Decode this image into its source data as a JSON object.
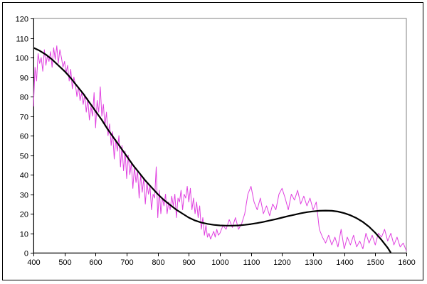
{
  "chart_data": {
    "type": "line",
    "title": "",
    "xlabel": "",
    "ylabel": "",
    "xlim": [
      400,
      1600
    ],
    "ylim": [
      0,
      120
    ],
    "x_ticks": [
      400,
      500,
      600,
      700,
      800,
      900,
      1000,
      1100,
      1200,
      1300,
      1400,
      1500,
      1600
    ],
    "y_ticks": [
      0,
      10,
      20,
      30,
      40,
      50,
      60,
      70,
      80,
      90,
      100,
      110,
      120
    ],
    "grid": {
      "horizontal": true,
      "vertical": false
    },
    "legend": "none",
    "colors": {
      "noisy_series": "#e040e0",
      "trend_series": "#000000",
      "grid": "#000000",
      "plot_background": "#ffffff"
    },
    "series": [
      {
        "style": "noisy",
        "x": [
          400,
          405,
          410,
          415,
          420,
          425,
          430,
          435,
          440,
          445,
          450,
          455,
          460,
          465,
          470,
          475,
          480,
          485,
          490,
          495,
          500,
          505,
          510,
          515,
          520,
          525,
          530,
          535,
          540,
          545,
          550,
          555,
          560,
          565,
          570,
          575,
          580,
          585,
          590,
          595,
          600,
          605,
          610,
          615,
          620,
          625,
          630,
          635,
          640,
          645,
          650,
          655,
          660,
          665,
          670,
          675,
          680,
          685,
          690,
          695,
          700,
          705,
          710,
          715,
          720,
          725,
          730,
          735,
          740,
          745,
          750,
          755,
          760,
          765,
          770,
          775,
          780,
          785,
          790,
          795,
          800,
          805,
          810,
          815,
          820,
          825,
          830,
          835,
          840,
          845,
          850,
          855,
          860,
          865,
          870,
          875,
          880,
          885,
          890,
          895,
          900,
          905,
          910,
          915,
          920,
          925,
          930,
          935,
          940,
          945,
          950,
          955,
          960,
          965,
          970,
          975,
          980,
          985,
          990,
          995,
          1000,
          1010,
          1020,
          1030,
          1040,
          1050,
          1060,
          1070,
          1080,
          1090,
          1100,
          1110,
          1120,
          1130,
          1140,
          1150,
          1160,
          1170,
          1180,
          1190,
          1200,
          1210,
          1220,
          1230,
          1240,
          1250,
          1260,
          1270,
          1280,
          1290,
          1300,
          1310,
          1320,
          1330,
          1340,
          1350,
          1360,
          1370,
          1380,
          1390,
          1400,
          1410,
          1420,
          1430,
          1440,
          1450,
          1460,
          1470,
          1480,
          1490,
          1500,
          1510,
          1520,
          1530,
          1540,
          1550,
          1560,
          1570,
          1580,
          1590,
          1600
        ],
        "y": [
          75,
          95,
          88,
          102,
          97,
          100,
          93,
          104,
          96,
          101,
          98,
          103,
          95,
          105,
          99,
          106,
          97,
          104,
          100,
          95,
          98,
          92,
          96,
          88,
          94,
          84,
          90,
          86,
          80,
          85,
          78,
          82,
          76,
          81,
          72,
          79,
          68,
          75,
          70,
          82,
          64,
          78,
          72,
          85,
          70,
          76,
          65,
          72,
          60,
          66,
          55,
          62,
          48,
          58,
          52,
          60,
          44,
          55,
          42,
          52,
          38,
          50,
          40,
          46,
          33,
          44,
          36,
          42,
          28,
          40,
          31,
          38,
          25,
          36,
          30,
          34,
          22,
          30,
          28,
          44,
          18,
          32,
          20,
          28,
          24,
          30,
          20,
          26,
          22,
          29,
          24,
          30,
          18,
          28,
          26,
          32,
          22,
          30,
          28,
          34,
          26,
          33,
          22,
          28,
          20,
          26,
          18,
          24,
          12,
          18,
          9,
          14,
          8,
          10,
          7,
          9,
          11,
          8,
          12,
          9,
          10,
          14,
          12,
          17,
          13,
          18,
          12,
          15,
          20,
          30,
          34,
          26,
          22,
          28,
          20,
          24,
          19,
          25,
          22,
          30,
          33,
          28,
          22,
          30,
          27,
          32,
          25,
          29,
          24,
          28,
          22,
          26,
          12,
          8,
          5,
          9,
          4,
          8,
          3,
          12,
          2,
          8,
          4,
          9,
          3,
          6,
          2,
          10,
          5,
          9,
          4,
          10,
          8,
          12,
          6,
          10,
          4,
          8,
          3,
          5,
          1
        ]
      },
      {
        "style": "trend",
        "x": [
          400,
          420,
          440,
          460,
          480,
          500,
          520,
          540,
          560,
          580,
          600,
          620,
          640,
          660,
          680,
          700,
          720,
          740,
          760,
          780,
          800,
          820,
          840,
          860,
          880,
          900,
          920,
          940,
          960,
          980,
          1000,
          1020,
          1040,
          1060,
          1080,
          1100,
          1120,
          1140,
          1160,
          1180,
          1200,
          1220,
          1240,
          1260,
          1280,
          1300,
          1320,
          1340,
          1360,
          1380,
          1400,
          1420,
          1440,
          1460,
          1480,
          1500,
          1520,
          1540,
          1550
        ],
        "y": [
          105,
          103.5,
          101.5,
          99,
          96,
          93,
          89.5,
          85.5,
          81.5,
          77,
          72.5,
          68,
          63,
          58.5,
          54,
          49.5,
          45,
          41,
          37,
          33.5,
          30,
          27,
          24.5,
          22,
          20,
          18,
          16.5,
          15.5,
          14.8,
          14.3,
          14,
          13.9,
          13.9,
          14,
          14.3,
          14.7,
          15.2,
          15.8,
          16.5,
          17.2,
          18,
          18.8,
          19.5,
          20.2,
          20.8,
          21.2,
          21.5,
          21.6,
          21.5,
          21.1,
          20.3,
          19.2,
          17.7,
          15.8,
          13.3,
          10.2,
          6.6,
          2.5,
          0
        ]
      }
    ]
  }
}
